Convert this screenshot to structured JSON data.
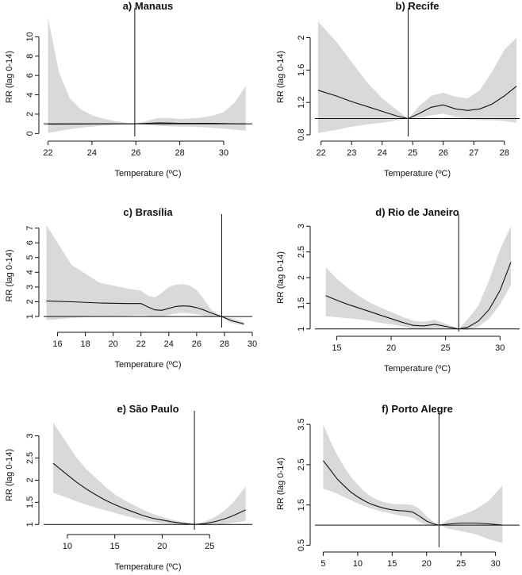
{
  "chart_data": [
    {
      "type": "line",
      "title": "a) Manaus",
      "xlabel": "Temperature (ºC)",
      "ylabel": "RR (lag 0-14)",
      "xlim": [
        21.8,
        31.3
      ],
      "ylim": [
        -0.3,
        12.0
      ],
      "xticks": [
        22,
        24,
        26,
        28,
        30
      ],
      "yticks": [
        0,
        2,
        4,
        6,
        8,
        10
      ],
      "reference_y": 1,
      "reference_x": 25.95,
      "series": [
        {
          "x": [
            22,
            22.5,
            23,
            23.5,
            24,
            24.5,
            25,
            25.5,
            25.95,
            26.5,
            27,
            27.5,
            28,
            28.5,
            29,
            29.5,
            30,
            30.5,
            31
          ],
          "y": [
            0.98,
            0.98,
            0.99,
            0.99,
            1.0,
            1.0,
            1.0,
            1.0,
            1.0,
            1.05,
            1.1,
            1.08,
            1.05,
            1.05,
            1.05,
            1.05,
            1.03,
            1.0,
            1.0
          ],
          "lower": [
            0.05,
            0.25,
            0.45,
            0.6,
            0.72,
            0.82,
            0.9,
            0.96,
            1.0,
            0.9,
            0.8,
            0.75,
            0.72,
            0.7,
            0.65,
            0.58,
            0.5,
            0.4,
            0.3
          ],
          "upper": [
            12.0,
            6.3,
            3.6,
            2.5,
            1.9,
            1.55,
            1.3,
            1.12,
            1.0,
            1.3,
            1.6,
            1.6,
            1.5,
            1.55,
            1.65,
            1.85,
            2.2,
            3.2,
            4.9
          ]
        }
      ]
    },
    {
      "type": "line",
      "title": "b) Recife",
      "xlabel": "Temperature (ºC)",
      "ylabel": "RR (lag 0-14)",
      "xlim": [
        21.8,
        28.5
      ],
      "ylim": [
        0.78,
        2.25
      ],
      "xticks": [
        22,
        23,
        24,
        25,
        26,
        27,
        28
      ],
      "yticks": [
        0.8,
        1.2,
        1.6,
        2.0
      ],
      "reference_y": 1,
      "reference_x": 24.85,
      "series": [
        {
          "x": [
            21.9,
            22.5,
            23,
            23.5,
            24,
            24.5,
            24.85,
            25.2,
            25.6,
            26,
            26.4,
            26.8,
            27.2,
            27.6,
            28,
            28.4
          ],
          "y": [
            1.35,
            1.28,
            1.21,
            1.15,
            1.09,
            1.03,
            1.0,
            1.06,
            1.14,
            1.17,
            1.12,
            1.1,
            1.12,
            1.18,
            1.28,
            1.4
          ],
          "lower": [
            0.82,
            0.86,
            0.9,
            0.93,
            0.95,
            0.98,
            1.0,
            1.01,
            1.04,
            1.06,
            1.02,
            0.99,
            0.98,
            0.98,
            0.97,
            0.95
          ],
          "upper": [
            2.2,
            1.95,
            1.7,
            1.45,
            1.25,
            1.1,
            1.0,
            1.15,
            1.28,
            1.32,
            1.27,
            1.25,
            1.35,
            1.58,
            1.85,
            2.0
          ]
        }
      ]
    },
    {
      "type": "line",
      "title": "c) Brasília",
      "xlabel": "Temperature (ºC)",
      "ylabel": "RR (lag 0-14)",
      "xlim": [
        15.0,
        30.0
      ],
      "ylim": [
        0.25,
        7.3
      ],
      "xticks": [
        16,
        18,
        20,
        22,
        24,
        26,
        28,
        30
      ],
      "yticks": [
        1,
        2,
        3,
        4,
        5,
        6,
        7
      ],
      "reference_y": 1,
      "reference_x": 27.8,
      "series": [
        {
          "x": [
            15.2,
            17,
            19,
            21,
            22,
            22.5,
            23,
            23.5,
            24,
            24.5,
            25,
            25.5,
            26,
            26.5,
            27,
            27.8,
            28.5,
            29.4
          ],
          "y": [
            2.05,
            2.0,
            1.92,
            1.88,
            1.88,
            1.65,
            1.45,
            1.42,
            1.55,
            1.68,
            1.72,
            1.7,
            1.6,
            1.45,
            1.25,
            1.0,
            0.72,
            0.5
          ],
          "lower": [
            0.75,
            0.9,
            1.0,
            1.05,
            1.1,
            1.05,
            1.0,
            1.0,
            1.1,
            1.2,
            1.25,
            1.2,
            1.15,
            1.05,
            0.95,
            1.0,
            0.55,
            0.4
          ],
          "upper": [
            7.2,
            4.5,
            3.3,
            2.9,
            2.75,
            2.4,
            2.3,
            2.6,
            3.0,
            3.15,
            3.2,
            3.1,
            2.8,
            2.2,
            1.5,
            1.0,
            0.9,
            0.62
          ]
        }
      ]
    },
    {
      "type": "line",
      "title": "d) Rio de Janeiro",
      "xlabel": "Temperature (ºC)",
      "ylabel": "RR (lag 0-14)",
      "xlim": [
        13.0,
        31.8
      ],
      "ylim": [
        0.95,
        3.05
      ],
      "xticks": [
        15,
        20,
        25,
        30
      ],
      "yticks": [
        1.0,
        1.5,
        2.0,
        2.5,
        3.0
      ],
      "reference_y": 1,
      "reference_x": 26.2,
      "series": [
        {
          "x": [
            14,
            15,
            16,
            17,
            18,
            19,
            20,
            21,
            22,
            23,
            24,
            25,
            26.2,
            27,
            28,
            29,
            30,
            31
          ],
          "y": [
            1.65,
            1.56,
            1.48,
            1.41,
            1.34,
            1.27,
            1.2,
            1.13,
            1.07,
            1.06,
            1.09,
            1.05,
            1.0,
            1.03,
            1.15,
            1.38,
            1.75,
            2.3
          ],
          "lower": [
            1.25,
            1.23,
            1.21,
            1.19,
            1.16,
            1.12,
            1.09,
            1.05,
            1.0,
            1.0,
            1.02,
            1.01,
            1.0,
            0.98,
            1.04,
            1.2,
            1.48,
            1.85
          ],
          "upper": [
            2.2,
            1.98,
            1.8,
            1.65,
            1.52,
            1.42,
            1.33,
            1.24,
            1.16,
            1.14,
            1.18,
            1.1,
            1.0,
            1.18,
            1.45,
            1.95,
            2.55,
            3.0
          ]
        }
      ]
    },
    {
      "type": "line",
      "title": "e) São Paulo",
      "xlabel": "Temperature (ºC)",
      "ylabel": "RR (lag 0-14)",
      "xlim": [
        7.5,
        29.5
      ],
      "ylim": [
        0.88,
        3.35
      ],
      "xticks": [
        10,
        15,
        20,
        25
      ],
      "yticks": [
        1.0,
        1.5,
        2.0,
        2.5,
        3.0
      ],
      "reference_y": 1,
      "reference_x": 23.4,
      "series": [
        {
          "x": [
            8.5,
            10,
            11,
            12,
            13,
            14,
            15,
            16,
            17,
            18,
            19,
            20,
            21,
            22,
            23.4,
            24.5,
            25.5,
            26.5,
            27.5,
            28.8
          ],
          "y": [
            2.38,
            2.12,
            1.95,
            1.8,
            1.67,
            1.55,
            1.45,
            1.36,
            1.28,
            1.2,
            1.14,
            1.1,
            1.06,
            1.03,
            1.0,
            1.02,
            1.06,
            1.12,
            1.2,
            1.33
          ],
          "lower": [
            1.72,
            1.6,
            1.52,
            1.45,
            1.38,
            1.32,
            1.26,
            1.2,
            1.15,
            1.1,
            1.06,
            1.03,
            1.01,
            0.99,
            1.0,
            0.98,
            0.99,
            1.01,
            1.04,
            1.08
          ],
          "upper": [
            3.3,
            2.82,
            2.5,
            2.25,
            2.05,
            1.85,
            1.68,
            1.55,
            1.44,
            1.33,
            1.24,
            1.17,
            1.11,
            1.06,
            1.0,
            1.07,
            1.16,
            1.3,
            1.5,
            1.85
          ]
        }
      ]
    },
    {
      "type": "line",
      "title": "f) Porto Alegre",
      "xlabel": "Temperature (ºC)",
      "ylabel": "RR (lag 0-14)",
      "xlim": [
        3.8,
        33.5
      ],
      "ylim": [
        0.45,
        3.6
      ],
      "xticks": [
        5,
        10,
        15,
        20,
        25,
        30
      ],
      "yticks": [
        0.5,
        1.5,
        2.5,
        3.5
      ],
      "reference_y": 1,
      "reference_x": 21.8,
      "series": [
        {
          "x": [
            5,
            6,
            7,
            8,
            9,
            10,
            11,
            12,
            13,
            14,
            15,
            16,
            17,
            18,
            19,
            20,
            21,
            21.8,
            23,
            25,
            27,
            29,
            31
          ],
          "y": [
            2.6,
            2.38,
            2.15,
            1.98,
            1.82,
            1.7,
            1.6,
            1.52,
            1.46,
            1.41,
            1.38,
            1.36,
            1.35,
            1.32,
            1.22,
            1.1,
            1.03,
            1.0,
            1.02,
            1.05,
            1.05,
            1.03,
            1.0
          ],
          "lower": [
            1.9,
            1.85,
            1.78,
            1.7,
            1.62,
            1.54,
            1.47,
            1.41,
            1.36,
            1.32,
            1.28,
            1.24,
            1.22,
            1.18,
            1.08,
            1.0,
            0.98,
            1.0,
            0.92,
            0.85,
            0.78,
            0.65,
            0.55
          ],
          "upper": [
            3.5,
            3.1,
            2.75,
            2.45,
            2.2,
            2.0,
            1.83,
            1.7,
            1.62,
            1.56,
            1.53,
            1.52,
            1.52,
            1.5,
            1.4,
            1.22,
            1.08,
            1.0,
            1.12,
            1.24,
            1.38,
            1.6,
            1.98
          ]
        }
      ]
    }
  ]
}
